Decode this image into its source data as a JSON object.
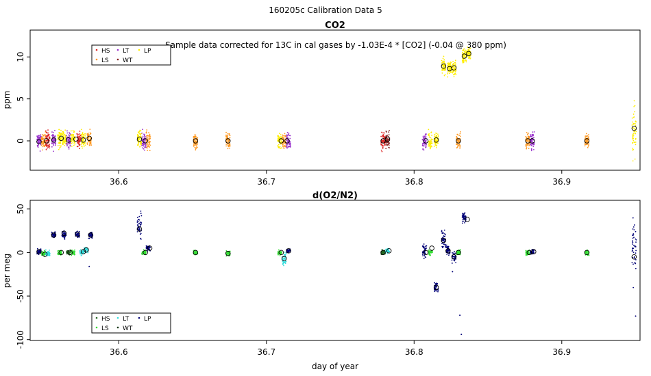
{
  "figure_title": "160205c   Calibration Data 5",
  "chart_data": [
    {
      "type": "scatter",
      "title": "CO2",
      "annotation": "Sample data corrected for 13C in cal gases by -1.03E-4 * [CO2] (-0.04 @ 380 ppm)",
      "xlabel": "",
      "ylabel": "ppm",
      "xlim": [
        36.54,
        36.953
      ],
      "ylim": [
        -3.5,
        13.2
      ],
      "xticks": [
        "36.6",
        "36.7",
        "36.8",
        "36.9"
      ],
      "xtick_values": [
        36.6,
        36.7,
        36.8,
        36.9
      ],
      "yticks": [
        "0",
        "5",
        "10"
      ],
      "ytick_values": [
        0,
        5,
        10
      ],
      "grid": false,
      "legend_position": "top-left",
      "legend": [
        {
          "name": "HS",
          "color": "#dd2222"
        },
        {
          "name": "LS",
          "color": "#ff9922"
        },
        {
          "name": "LT",
          "color": "#9933cc"
        },
        {
          "name": "WT",
          "color": "#882222"
        },
        {
          "name": "LP",
          "color": "#ffee00"
        }
      ],
      "clusters": [
        {
          "x": 36.546,
          "y": 0.0,
          "spread": 1.0,
          "color": "#9933cc"
        },
        {
          "x": 36.549,
          "y": 0.0,
          "spread": 1.0,
          "color": "#ff9922"
        },
        {
          "x": 36.552,
          "y": 0.1,
          "spread": 1.1,
          "color": "#dd2222"
        },
        {
          "x": 36.556,
          "y": 0.1,
          "spread": 1.0,
          "color": "#9933cc"
        },
        {
          "x": 36.56,
          "y": 0.3,
          "spread": 1.1,
          "color": "#ffee00"
        },
        {
          "x": 36.563,
          "y": 0.3,
          "spread": 1.0,
          "color": "#ffee00"
        },
        {
          "x": 36.566,
          "y": 0.1,
          "spread": 1.0,
          "color": "#9933cc"
        },
        {
          "x": 36.569,
          "y": 0.2,
          "spread": 1.0,
          "color": "#ffee00"
        },
        {
          "x": 36.573,
          "y": 0.0,
          "spread": 1.0,
          "color": "#dd2222"
        },
        {
          "x": 36.576,
          "y": 0.1,
          "spread": 1.0,
          "color": "#ffee00"
        },
        {
          "x": 36.58,
          "y": 0.3,
          "spread": 1.0,
          "color": "#ff9922"
        },
        {
          "x": 36.614,
          "y": 0.2,
          "spread": 1.0,
          "color": "#ffee00"
        },
        {
          "x": 36.617,
          "y": 0.0,
          "spread": 1.0,
          "color": "#9933cc"
        },
        {
          "x": 36.62,
          "y": 0.0,
          "spread": 1.0,
          "color": "#ff9922"
        },
        {
          "x": 36.652,
          "y": 0.0,
          "spread": 1.0,
          "color": "#ff9922"
        },
        {
          "x": 36.674,
          "y": 0.0,
          "spread": 1.0,
          "color": "#ff9922"
        },
        {
          "x": 36.709,
          "y": 0.0,
          "spread": 1.1,
          "color": "#ffee00"
        },
        {
          "x": 36.712,
          "y": 0.0,
          "spread": 1.0,
          "color": "#ff9922"
        },
        {
          "x": 36.715,
          "y": 0.0,
          "spread": 1.0,
          "color": "#9933cc"
        },
        {
          "x": 36.779,
          "y": 0.0,
          "spread": 1.0,
          "color": "#dd2222"
        },
        {
          "x": 36.782,
          "y": 0.1,
          "spread": 1.0,
          "color": "#882222"
        },
        {
          "x": 36.807,
          "y": 0.0,
          "spread": 1.0,
          "color": "#9933cc"
        },
        {
          "x": 36.811,
          "y": 0.0,
          "spread": 1.0,
          "color": "#ffee00"
        },
        {
          "x": 36.815,
          "y": 0.1,
          "spread": 1.0,
          "color": "#ffee00"
        },
        {
          "x": 36.82,
          "y": 8.8,
          "spread": 0.9,
          "color": "#ffee00"
        },
        {
          "x": 36.824,
          "y": 8.6,
          "spread": 0.9,
          "color": "#ffee00"
        },
        {
          "x": 36.827,
          "y": 8.7,
          "spread": 0.9,
          "color": "#ffee00"
        },
        {
          "x": 36.83,
          "y": 0.0,
          "spread": 1.0,
          "color": "#ff9922"
        },
        {
          "x": 36.834,
          "y": 10.1,
          "spread": 0.9,
          "color": "#ffee00"
        },
        {
          "x": 36.837,
          "y": 10.4,
          "spread": 0.9,
          "color": "#ffee00"
        },
        {
          "x": 36.877,
          "y": 0.0,
          "spread": 1.0,
          "color": "#ff9922"
        },
        {
          "x": 36.88,
          "y": 0.0,
          "spread": 1.0,
          "color": "#9933cc"
        },
        {
          "x": 36.917,
          "y": 0.0,
          "spread": 1.0,
          "color": "#ff9922"
        },
        {
          "x": 36.949,
          "y": 1.5,
          "spread": 3.5,
          "color": "#ffee00"
        }
      ],
      "means": [
        {
          "x": 36.546,
          "y": -0.1
        },
        {
          "x": 36.551,
          "y": 0.0
        },
        {
          "x": 36.556,
          "y": 0.1
        },
        {
          "x": 36.561,
          "y": 0.3
        },
        {
          "x": 36.566,
          "y": 0.1
        },
        {
          "x": 36.571,
          "y": 0.2
        },
        {
          "x": 36.576,
          "y": 0.1
        },
        {
          "x": 36.58,
          "y": 0.3
        },
        {
          "x": 36.614,
          "y": 0.2
        },
        {
          "x": 36.618,
          "y": 0.0
        },
        {
          "x": 36.652,
          "y": 0.0
        },
        {
          "x": 36.674,
          "y": 0.0
        },
        {
          "x": 36.71,
          "y": 0.0
        },
        {
          "x": 36.714,
          "y": 0.0
        },
        {
          "x": 36.779,
          "y": 0.0
        },
        {
          "x": 36.782,
          "y": 0.2
        },
        {
          "x": 36.808,
          "y": 0.0
        },
        {
          "x": 36.815,
          "y": 0.1
        },
        {
          "x": 36.82,
          "y": 8.9
        },
        {
          "x": 36.824,
          "y": 8.6
        },
        {
          "x": 36.827,
          "y": 8.7
        },
        {
          "x": 36.83,
          "y": 0.0
        },
        {
          "x": 36.834,
          "y": 10.1
        },
        {
          "x": 36.837,
          "y": 10.4
        },
        {
          "x": 36.877,
          "y": 0.0
        },
        {
          "x": 36.88,
          "y": 0.0
        },
        {
          "x": 36.917,
          "y": 0.0
        },
        {
          "x": 36.949,
          "y": 1.5
        }
      ]
    },
    {
      "type": "scatter",
      "title": "d(O2/N2)",
      "xlabel": "day of year",
      "ylabel": "per meg",
      "xlim": [
        36.54,
        36.953
      ],
      "ylim": [
        -101,
        60
      ],
      "xticks": [
        "36.6",
        "36.7",
        "36.8",
        "36.9"
      ],
      "xtick_values": [
        36.6,
        36.7,
        36.8,
        36.9
      ],
      "yticks": [
        "-100",
        "-50",
        "0",
        "50"
      ],
      "ytick_values": [
        -100,
        -50,
        0,
        50
      ],
      "grid": false,
      "legend_position": "bottom-left",
      "legend": [
        {
          "name": "HS",
          "color": "#226622"
        },
        {
          "name": "LS",
          "color": "#33dd33"
        },
        {
          "name": "LT",
          "color": "#33dddd"
        },
        {
          "name": "WT",
          "color": "#003300"
        },
        {
          "name": "LP",
          "color": "#000077"
        }
      ],
      "clusters": [
        {
          "x": 36.546,
          "y": 1.0,
          "spread": 3.0,
          "color": "#000077"
        },
        {
          "x": 36.549,
          "y": -1.0,
          "spread": 3.0,
          "color": "#33dd33"
        },
        {
          "x": 36.552,
          "y": -1.0,
          "spread": 3.0,
          "color": "#33dddd"
        },
        {
          "x": 36.556,
          "y": 20.0,
          "spread": 4.0,
          "color": "#000077"
        },
        {
          "x": 36.56,
          "y": 0.0,
          "spread": 3.0,
          "color": "#33dd33"
        },
        {
          "x": 36.563,
          "y": 21.0,
          "spread": 5.0,
          "color": "#000077"
        },
        {
          "x": 36.566,
          "y": 0.0,
          "spread": 3.0,
          "color": "#226622"
        },
        {
          "x": 36.569,
          "y": 0.0,
          "spread": 3.0,
          "color": "#33dd33"
        },
        {
          "x": 36.572,
          "y": 21.0,
          "spread": 4.0,
          "color": "#000077"
        },
        {
          "x": 36.575,
          "y": 0.0,
          "spread": 3.0,
          "color": "#33dddd"
        },
        {
          "x": 36.578,
          "y": 3.0,
          "spread": 3.0,
          "color": "#33dddd"
        },
        {
          "x": 36.581,
          "y": 20.0,
          "spread": 4.0,
          "color": "#000077"
        },
        {
          "x": 36.614,
          "y": 30.0,
          "spread": 14.0,
          "color": "#000077"
        },
        {
          "x": 36.617,
          "y": 0.0,
          "spread": 3.0,
          "color": "#33dd33"
        },
        {
          "x": 36.62,
          "y": 5.0,
          "spread": 3.0,
          "color": "#000077"
        },
        {
          "x": 36.652,
          "y": 0.0,
          "spread": 3.0,
          "color": "#33dd33"
        },
        {
          "x": 36.674,
          "y": -1.0,
          "spread": 3.0,
          "color": "#33dd33"
        },
        {
          "x": 36.709,
          "y": 0.0,
          "spread": 3.0,
          "color": "#33dd33"
        },
        {
          "x": 36.712,
          "y": -7.0,
          "spread": 8.0,
          "color": "#33dddd"
        },
        {
          "x": 36.715,
          "y": 2.0,
          "spread": 3.0,
          "color": "#000077"
        },
        {
          "x": 36.779,
          "y": 0.0,
          "spread": 3.0,
          "color": "#226622"
        },
        {
          "x": 36.782,
          "y": 2.0,
          "spread": 3.0,
          "color": "#33dddd"
        },
        {
          "x": 36.807,
          "y": 2.0,
          "spread": 8.0,
          "color": "#000077"
        },
        {
          "x": 36.811,
          "y": 0.0,
          "spread": 3.0,
          "color": "#33dd33"
        },
        {
          "x": 36.815,
          "y": -40.0,
          "spread": 6.0,
          "color": "#000077"
        },
        {
          "x": 36.82,
          "y": 15.0,
          "spread": 12.0,
          "color": "#000077"
        },
        {
          "x": 36.823,
          "y": 3.0,
          "spread": 6.0,
          "color": "#000077"
        },
        {
          "x": 36.827,
          "y": -5.0,
          "spread": 6.0,
          "color": "#000077"
        },
        {
          "x": 36.83,
          "y": 0.0,
          "spread": 3.0,
          "color": "#33dd33"
        },
        {
          "x": 36.834,
          "y": 40.0,
          "spread": 6.0,
          "color": "#000077"
        },
        {
          "x": 36.877,
          "y": 0.0,
          "spread": 3.0,
          "color": "#33dd33"
        },
        {
          "x": 36.88,
          "y": 1.0,
          "spread": 3.0,
          "color": "#000077"
        },
        {
          "x": 36.917,
          "y": 0.0,
          "spread": 3.0,
          "color": "#33dd33"
        },
        {
          "x": 36.949,
          "y": 5.0,
          "spread": 34.0,
          "color": "#000077"
        }
      ],
      "outliers": [
        {
          "x": 36.831,
          "y": -72,
          "color": "#000077"
        },
        {
          "x": 36.832,
          "y": -94,
          "color": "#000077"
        },
        {
          "x": 36.95,
          "y": -73,
          "color": "#000077"
        },
        {
          "x": 36.58,
          "y": -16,
          "color": "#000077"
        },
        {
          "x": 36.826,
          "y": -22,
          "color": "#000077"
        }
      ],
      "means": [
        {
          "x": 36.546,
          "y": 1
        },
        {
          "x": 36.55,
          "y": -2
        },
        {
          "x": 36.556,
          "y": 20
        },
        {
          "x": 36.561,
          "y": 0
        },
        {
          "x": 36.563,
          "y": 22
        },
        {
          "x": 36.567,
          "y": 0
        },
        {
          "x": 36.572,
          "y": 21
        },
        {
          "x": 36.576,
          "y": 1
        },
        {
          "x": 36.578,
          "y": 3
        },
        {
          "x": 36.581,
          "y": 20
        },
        {
          "x": 36.614,
          "y": 27
        },
        {
          "x": 36.618,
          "y": 0
        },
        {
          "x": 36.621,
          "y": 5
        },
        {
          "x": 36.652,
          "y": 0
        },
        {
          "x": 36.674,
          "y": -1
        },
        {
          "x": 36.71,
          "y": 0
        },
        {
          "x": 36.712,
          "y": -7
        },
        {
          "x": 36.715,
          "y": 2
        },
        {
          "x": 36.779,
          "y": 0
        },
        {
          "x": 36.783,
          "y": 2
        },
        {
          "x": 36.808,
          "y": 0
        },
        {
          "x": 36.812,
          "y": 5
        },
        {
          "x": 36.815,
          "y": -40
        },
        {
          "x": 36.82,
          "y": 14
        },
        {
          "x": 36.823,
          "y": 2
        },
        {
          "x": 36.827,
          "y": -5
        },
        {
          "x": 36.83,
          "y": 0
        },
        {
          "x": 36.836,
          "y": 38
        },
        {
          "x": 36.878,
          "y": 0
        },
        {
          "x": 36.881,
          "y": 1
        },
        {
          "x": 36.917,
          "y": 0
        },
        {
          "x": 36.949,
          "y": -5
        }
      ]
    }
  ]
}
